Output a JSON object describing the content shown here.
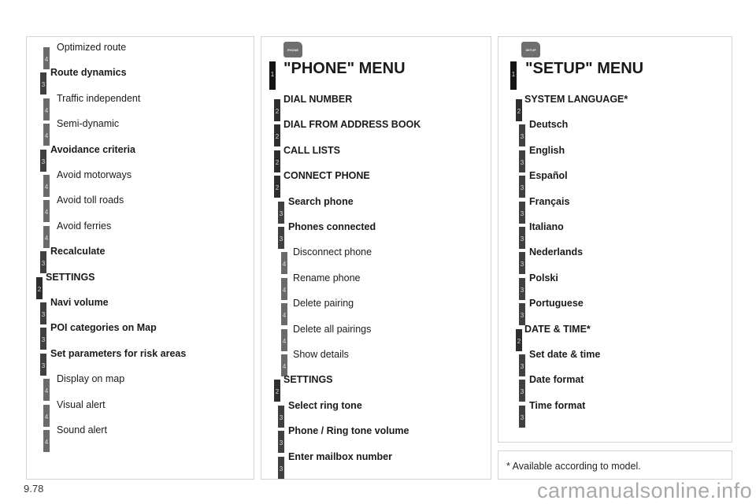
{
  "left": {
    "items": [
      {
        "level": "4",
        "label": "Optimized route"
      },
      {
        "level": "3",
        "label": "Route dynamics"
      },
      {
        "level": "4",
        "label": "Traffic independent"
      },
      {
        "level": "4",
        "label": "Semi-dynamic"
      },
      {
        "level": "3",
        "label": "Avoidance criteria"
      },
      {
        "level": "4",
        "label": "Avoid motorways"
      },
      {
        "level": "4",
        "label": "Avoid toll roads"
      },
      {
        "level": "4",
        "label": "Avoid ferries"
      },
      {
        "level": "3",
        "label": "Recalculate"
      },
      {
        "level": "2",
        "label": "SETTINGS"
      },
      {
        "level": "3",
        "label": "Navi volume"
      },
      {
        "level": "3",
        "label": "POI categories on Map"
      },
      {
        "level": "3",
        "label": "Set parameters for risk areas"
      },
      {
        "level": "4",
        "label": "Display on map"
      },
      {
        "level": "4",
        "label": "Visual alert"
      },
      {
        "level": "4",
        "label": "Sound alert"
      }
    ]
  },
  "phone": {
    "icon": "phone-button-icon",
    "icon_text": "PHONE",
    "title_level": "1",
    "title": "\"PHONE\" MENU",
    "items": [
      {
        "level": "2",
        "label": "DIAL NUMBER"
      },
      {
        "level": "2",
        "label": "DIAL FROM ADDRESS BOOK"
      },
      {
        "level": "2",
        "label": "CALL LISTS"
      },
      {
        "level": "2",
        "label": "CONNECT PHONE"
      },
      {
        "level": "3",
        "label": "Search phone"
      },
      {
        "level": "3",
        "label": "Phones connected"
      },
      {
        "level": "4",
        "label": "Disconnect phone"
      },
      {
        "level": "4",
        "label": "Rename phone"
      },
      {
        "level": "4",
        "label": "Delete pairing"
      },
      {
        "level": "4",
        "label": "Delete all pairings"
      },
      {
        "level": "4",
        "label": "Show details"
      },
      {
        "level": "2",
        "label": "SETTINGS"
      },
      {
        "level": "3",
        "label": "Select ring tone"
      },
      {
        "level": "3",
        "label": "Phone / Ring tone volume"
      },
      {
        "level": "3",
        "label": "Enter mailbox number"
      }
    ]
  },
  "setup": {
    "icon": "setup-button-icon",
    "icon_text": "SETUP",
    "title_level": "1",
    "title": "\"SETUP\" MENU",
    "items": [
      {
        "level": "2",
        "label": "SYSTEM LANGUAGE*"
      },
      {
        "level": "3",
        "label": "Deutsch"
      },
      {
        "level": "3",
        "label": "English"
      },
      {
        "level": "3",
        "label": "Español"
      },
      {
        "level": "3",
        "label": "Français"
      },
      {
        "level": "3",
        "label": "Italiano"
      },
      {
        "level": "3",
        "label": "Nederlands"
      },
      {
        "level": "3",
        "label": "Polski"
      },
      {
        "level": "3",
        "label": "Portuguese"
      },
      {
        "level": "2",
        "label": "DATE & TIME*"
      },
      {
        "level": "3",
        "label": "Set date & time"
      },
      {
        "level": "3",
        "label": "Date format"
      },
      {
        "level": "3",
        "label": "Time format"
      }
    ]
  },
  "footnote": "* Available according to model.",
  "page_number": "9.78",
  "watermark": "carmanualsonline.info"
}
